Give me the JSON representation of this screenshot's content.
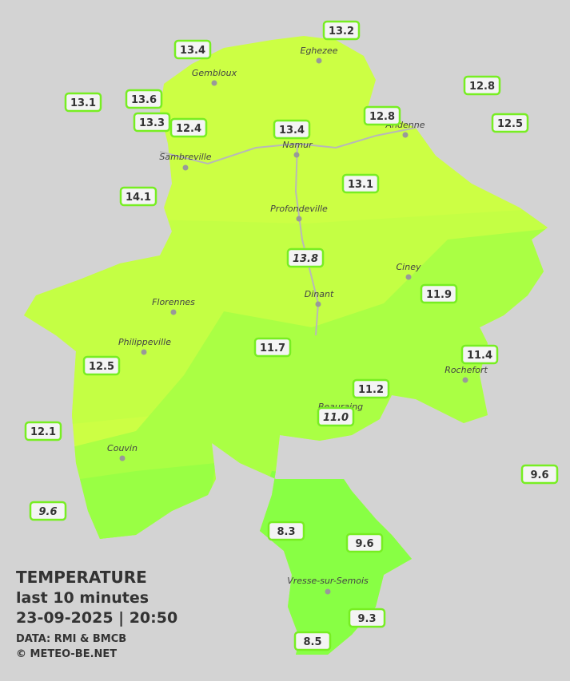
{
  "legend": {
    "title": "TEMPERATURE",
    "period": "last 10 minutes",
    "datetime": "23-09-2025  |  20:50",
    "source": "DATA: RMI & BMCB",
    "copyright": "© METEO-BE.NET"
  },
  "cities": [
    "Eghezee",
    "Gembloux",
    "Andenne",
    "Namur",
    "Sambreville",
    "Profondeville",
    "Ciney",
    "Dinant",
    "Florennes",
    "Philippeville",
    "Rochefort",
    "Beauraing",
    "Couvin",
    "Vresse-sur-Semois"
  ],
  "stations": [
    {
      "value": "13.2"
    },
    {
      "value": "13.4"
    },
    {
      "value": "12.8"
    },
    {
      "value": "13.1"
    },
    {
      "value": "13.6"
    },
    {
      "value": "13.3"
    },
    {
      "value": "12.4"
    },
    {
      "value": "13.4"
    },
    {
      "value": "12.8"
    },
    {
      "value": "12.5"
    },
    {
      "value": "13.1"
    },
    {
      "value": "14.1"
    },
    {
      "value": "13.8",
      "italic": true
    },
    {
      "value": "11.9"
    },
    {
      "value": "11.7"
    },
    {
      "value": "11.4"
    },
    {
      "value": "12.5"
    },
    {
      "value": "11.2"
    },
    {
      "value": "11.0",
      "italic": true
    },
    {
      "value": "12.1"
    },
    {
      "value": "9.6"
    },
    {
      "value": "9.6",
      "italic": true
    },
    {
      "value": "8.3"
    },
    {
      "value": "9.6"
    },
    {
      "value": "9.3"
    },
    {
      "value": "8.5"
    }
  ]
}
